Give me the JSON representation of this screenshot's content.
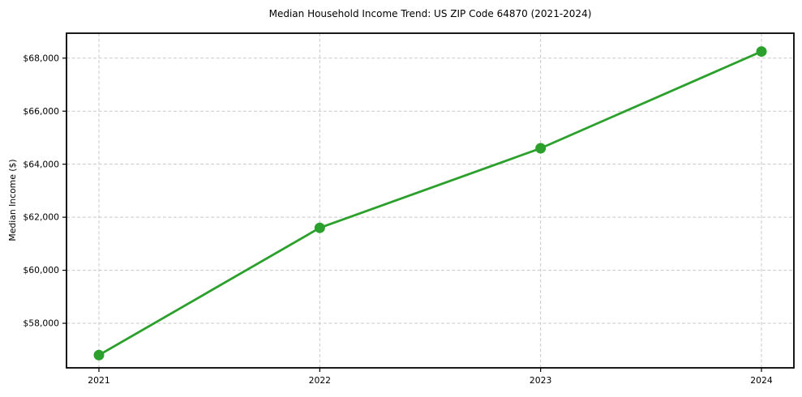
{
  "chart_data": {
    "type": "line",
    "title": "Median Household Income Trend: US ZIP Code 64870 (2021-2024)",
    "xlabel": "",
    "ylabel": "Median Income ($)",
    "categories": [
      "2021",
      "2022",
      "2023",
      "2024"
    ],
    "series": [
      {
        "name": "Median Household Income",
        "values": [
          56800,
          61600,
          64600,
          68250
        ]
      }
    ],
    "yticks": [
      58000,
      60000,
      62000,
      64000,
      66000,
      68000
    ],
    "ytick_labels": [
      "$58,000",
      "$60,000",
      "$62,000",
      "$64,000",
      "$66,000",
      "$68,000"
    ],
    "ylim": [
      56320,
      68940
    ],
    "grid": "both, dashed",
    "legend": "none",
    "marker": "circle",
    "colors": {
      "line": "#2ca02c",
      "marker": "#2ca02c",
      "grid": "#c8c8c8",
      "axis": "#000000",
      "text": "#000000",
      "background": "#ffffff"
    }
  }
}
